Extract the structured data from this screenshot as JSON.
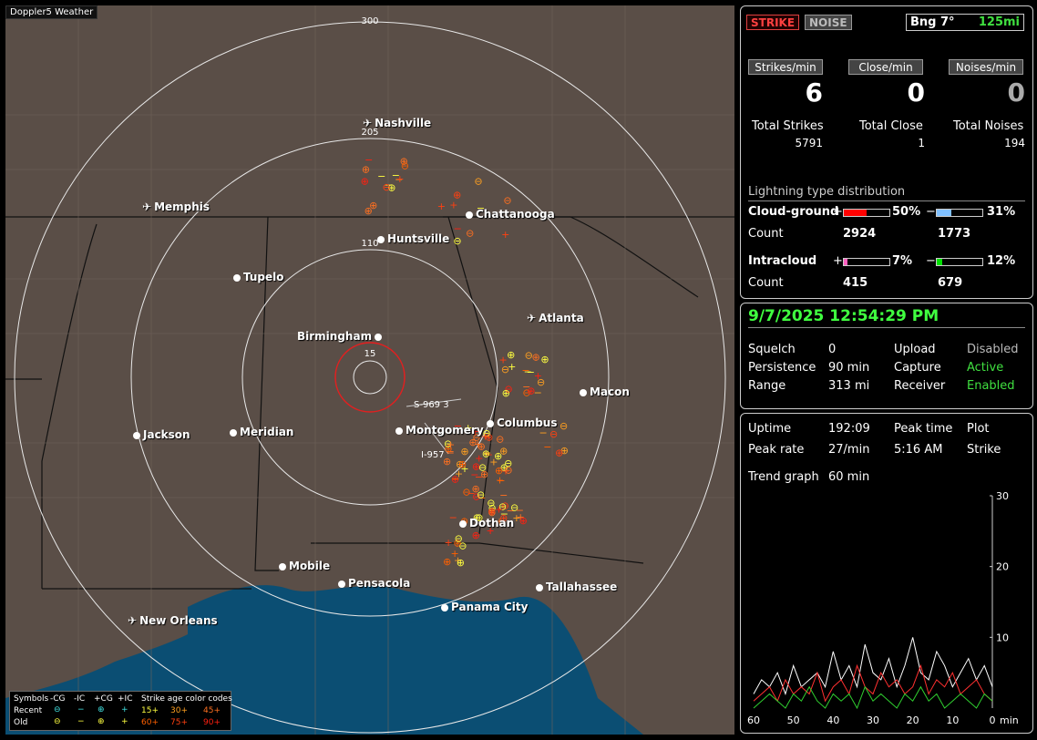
{
  "app_title": "Doppler5 Weather",
  "map": {
    "ring_labels": [
      "300",
      "205",
      "110",
      "15"
    ],
    "station_labels": [
      "S-969 3",
      "I-957"
    ],
    "cities": [
      {
        "name": "Nashville",
        "airport": true
      },
      {
        "name": "Memphis",
        "airport": true
      },
      {
        "name": "Chattanooga",
        "airport": false
      },
      {
        "name": "Huntsville",
        "airport": false
      },
      {
        "name": "Tupelo",
        "airport": false
      },
      {
        "name": "Atlanta",
        "airport": true
      },
      {
        "name": "Birmingham",
        "airport": false
      },
      {
        "name": "Macon",
        "airport": false
      },
      {
        "name": "Columbus",
        "airport": false
      },
      {
        "name": "Montgomery",
        "airport": false
      },
      {
        "name": "Jackson",
        "airport": false
      },
      {
        "name": "Meridian",
        "airport": false
      },
      {
        "name": "Dothan",
        "airport": false
      },
      {
        "name": "Mobile",
        "airport": false
      },
      {
        "name": "Pensacola",
        "airport": false
      },
      {
        "name": "Tallahassee",
        "airport": false
      },
      {
        "name": "Panama City",
        "airport": false
      },
      {
        "name": "New Orleans",
        "airport": true
      }
    ],
    "legend": {
      "symbols_label": "Symbols",
      "headers": [
        "-CG",
        "-IC",
        "+CG",
        "+IC"
      ],
      "age_title": "Strike age color codes",
      "recent_label": "Recent",
      "old_label": "Old",
      "recent_ages": [
        "15+",
        "30+",
        "45+"
      ],
      "old_ages": [
        "60+",
        "75+",
        "90+"
      ],
      "age_colors": [
        "#ffff40",
        "#ffa020",
        "#ff7020",
        "#ff6000",
        "#ff4010",
        "#ff2010"
      ]
    }
  },
  "status": {
    "strike_button": "STRIKE",
    "noise_button": "NOISE",
    "bearing": "Bng 7°",
    "range": "125mi",
    "strikes_min_label": "Strikes/min",
    "close_min_label": "Close/min",
    "noises_min_label": "Noises/min",
    "strikes_min": "6",
    "close_min": "0",
    "noises_min": "0",
    "total_strikes_label": "Total Strikes",
    "total_close_label": "Total Close",
    "total_noises_label": "Total Noises",
    "total_strikes": "5791",
    "total_close": "1",
    "total_noises": "194",
    "dist_title": "Lightning type distribution",
    "cg_label": "Cloud-ground",
    "ic_label": "Intracloud",
    "count_label": "Count",
    "plus": "+",
    "minus": "−",
    "cg_pos_pct": "50%",
    "cg_neg_pct": "31%",
    "cg_pos_count": "2924",
    "cg_neg_count": "1773",
    "ic_pos_pct": "7%",
    "ic_neg_pct": "12%",
    "ic_pos_count": "415",
    "ic_neg_count": "679",
    "cg_pos_fraction": 0.5,
    "cg_neg_fraction": 0.31,
    "ic_pos_fraction": 0.07,
    "ic_neg_fraction": 0.12,
    "colors": {
      "cg_pos": "#ff0000",
      "cg_neg": "#80c0ff",
      "ic_pos": "#ff60c0",
      "ic_neg": "#00e000"
    }
  },
  "settings": {
    "datetime": "9/7/2025 12:54:29 PM",
    "squelch_label": "Squelch",
    "squelch": "0",
    "persistence_label": "Persistence",
    "persistence": "90 min",
    "range_label": "Range",
    "range": "313 mi",
    "upload_label": "Upload",
    "upload": "Disabled",
    "capture_label": "Capture",
    "capture": "Active",
    "receiver_label": "Receiver",
    "receiver": "Enabled"
  },
  "trend": {
    "uptime_label": "Uptime",
    "uptime": "192:09",
    "peak_time_label": "Peak time",
    "peak_time": "5:16 AM",
    "plot_label": "Plot",
    "plot": "Strike",
    "peak_rate_label": "Peak rate",
    "peak_rate": "27/min",
    "trend_graph_label": "Trend graph",
    "trend_graph": "60 min",
    "y_ticks": [
      "30",
      "20",
      "10"
    ],
    "x_ticks": [
      "60",
      "50",
      "40",
      "30",
      "20",
      "10",
      "0"
    ],
    "x_unit": "min"
  },
  "chart_data": {
    "type": "line",
    "x": [
      60,
      58,
      56,
      54,
      52,
      50,
      48,
      46,
      44,
      42,
      40,
      38,
      36,
      34,
      32,
      30,
      28,
      26,
      24,
      22,
      20,
      18,
      16,
      14,
      12,
      10,
      8,
      6,
      4,
      2,
      0
    ],
    "xlim": [
      60,
      0
    ],
    "ylim": [
      0,
      30
    ],
    "series": [
      {
        "values": [
          2,
          4,
          3,
          5,
          2,
          6,
          3,
          4,
          5,
          3,
          8,
          4,
          6,
          3,
          9,
          5,
          4,
          7,
          3,
          6,
          10,
          5,
          4,
          8,
          6,
          3,
          5,
          7,
          4,
          6,
          3
        ]
      },
      {
        "values": [
          1,
          2,
          3,
          1,
          4,
          2,
          3,
          2,
          5,
          1,
          3,
          4,
          2,
          6,
          3,
          2,
          5,
          3,
          4,
          2,
          3,
          6,
          2,
          4,
          3,
          5,
          2,
          3,
          4,
          2,
          1
        ]
      },
      {
        "values": [
          0,
          1,
          2,
          1,
          0,
          2,
          1,
          3,
          1,
          0,
          2,
          1,
          2,
          0,
          3,
          1,
          2,
          1,
          0,
          2,
          1,
          3,
          1,
          2,
          0,
          1,
          2,
          1,
          0,
          2,
          1
        ]
      }
    ]
  }
}
